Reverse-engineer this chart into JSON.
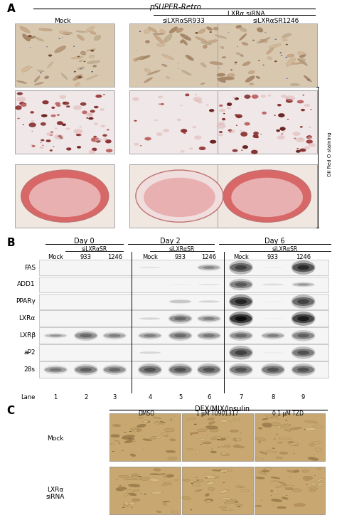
{
  "fig_width": 4.74,
  "fig_height": 7.38,
  "bg_color": "#ffffff",
  "panel_A": {
    "label": "A",
    "title_psuper": "pSUPER-Retro",
    "title_lxr": "LXRα siRNA",
    "col_labels": [
      "Mock",
      "siLXRαSR933",
      "siLXRαSR1246"
    ],
    "annotation": "Oil Red O staining"
  },
  "panel_B": {
    "label": "B",
    "day_labels": [
      "Day 0",
      "Day 2",
      "Day 6"
    ],
    "silxra_label": "siLXRαSR",
    "col_labels": [
      "Mock",
      "933",
      "1246",
      "Mock",
      "933",
      "1246",
      "Mock",
      "933",
      "1246"
    ],
    "gene_labels": [
      "FAS",
      "ADD1",
      "PPARγ",
      "LXRα",
      "LXRβ",
      "aP2",
      "28s"
    ],
    "lane_labels": [
      "1",
      "2",
      "3",
      "4",
      "5",
      "6",
      "7",
      "8",
      "9"
    ],
    "band_intensities": {
      "FAS": [
        0.0,
        0.0,
        0.0,
        0.12,
        0.0,
        0.35,
        0.65,
        0.08,
        0.75
      ],
      "ADD1": [
        0.0,
        0.0,
        0.0,
        0.05,
        0.08,
        0.12,
        0.55,
        0.15,
        0.28
      ],
      "PPARy": [
        0.0,
        0.0,
        0.0,
        0.0,
        0.25,
        0.18,
        0.78,
        0.08,
        0.65
      ],
      "LXRa": [
        0.0,
        0.0,
        0.0,
        0.18,
        0.48,
        0.38,
        0.88,
        0.08,
        0.82
      ],
      "LXRb": [
        0.28,
        0.48,
        0.38,
        0.38,
        0.48,
        0.42,
        0.48,
        0.38,
        0.52
      ],
      "aP2": [
        0.0,
        0.0,
        0.0,
        0.18,
        0.0,
        0.0,
        0.65,
        0.08,
        0.58
      ],
      "28s": [
        0.42,
        0.52,
        0.48,
        0.58,
        0.58,
        0.58,
        0.58,
        0.58,
        0.58
      ]
    }
  },
  "panel_C": {
    "label": "C",
    "title": "DEX/MIX/Insulin",
    "col_labels": [
      "DMSO",
      "1 μM T0901317",
      "0.1 μM TZD"
    ],
    "row_labels": [
      "Mock",
      "LXRα\nsiRNA"
    ]
  }
}
